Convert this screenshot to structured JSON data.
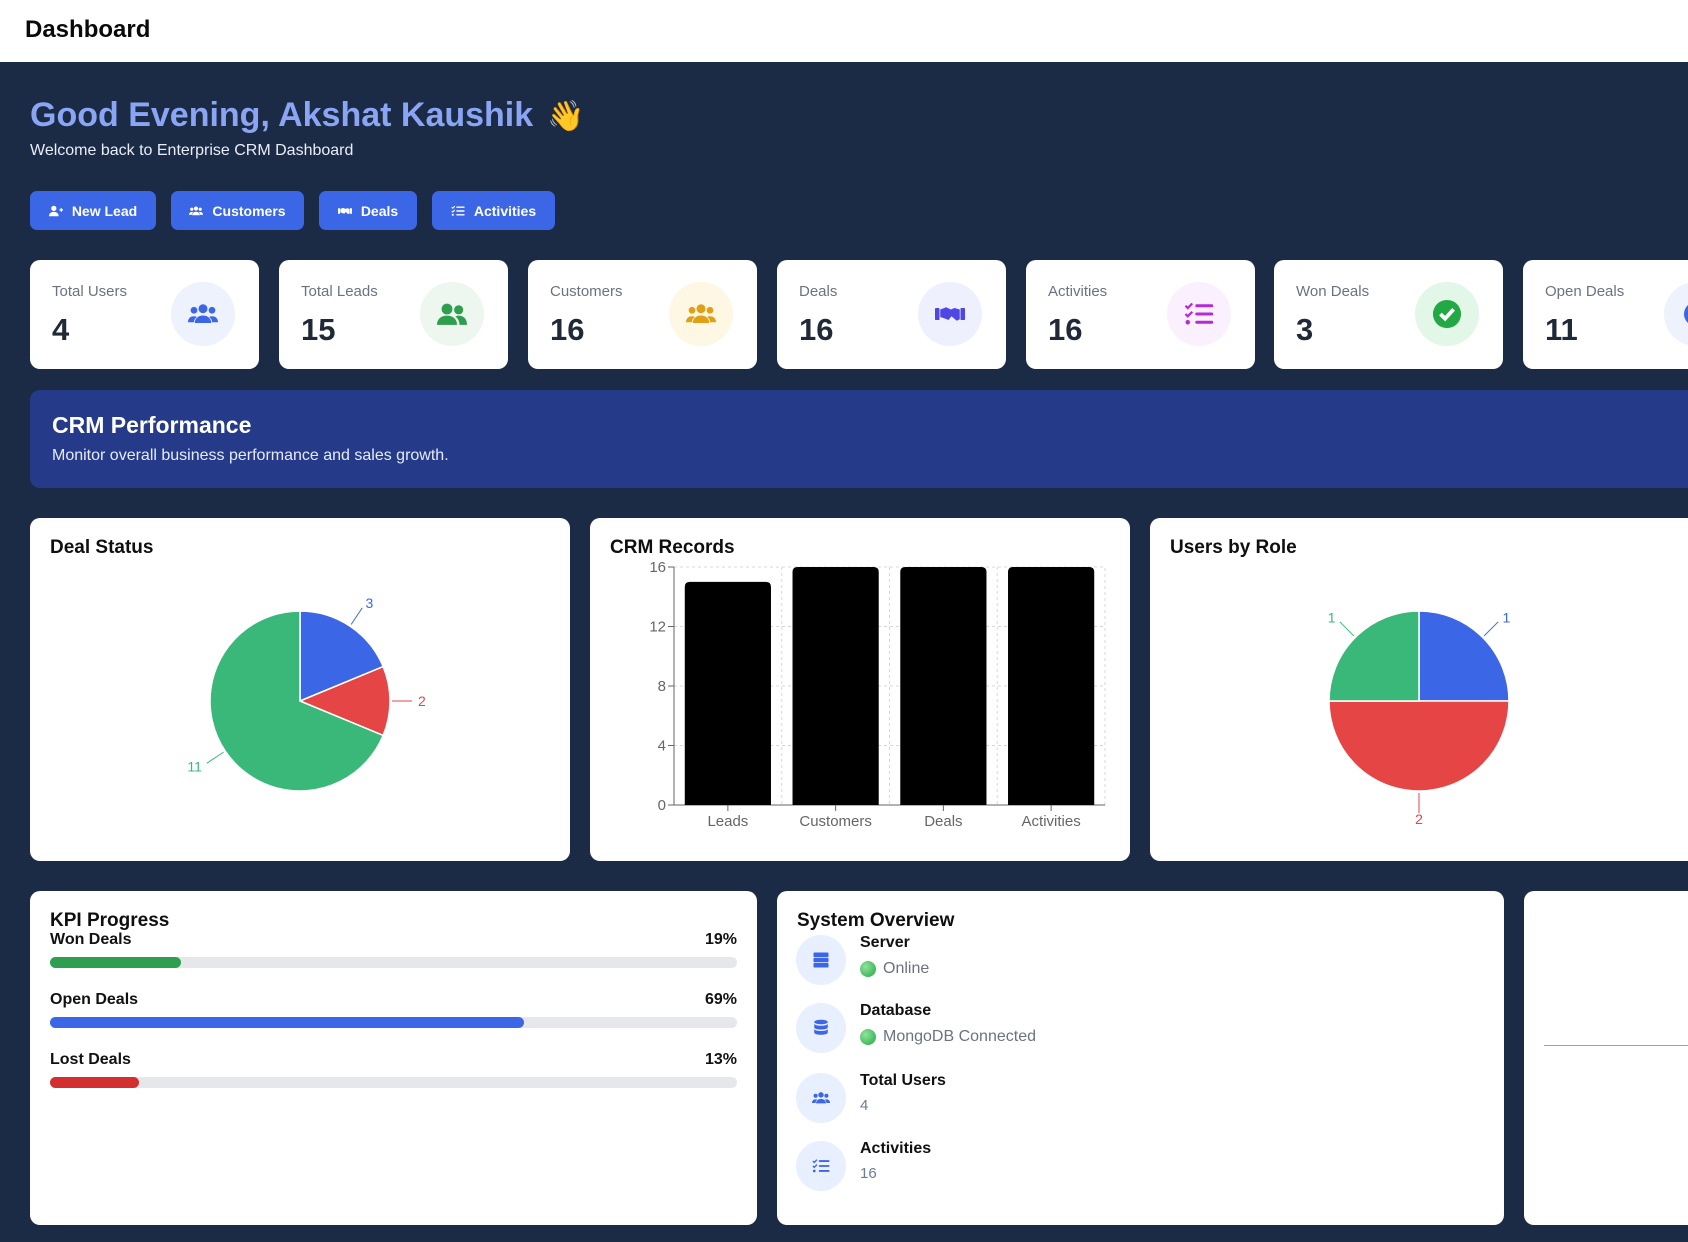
{
  "header": {
    "title": "Dashboard"
  },
  "welcome": {
    "greeting": "Good Evening, Akshat Kaushik",
    "emoji": "👋",
    "subtitle": "Welcome back to Enterprise CRM Dashboard"
  },
  "quick_actions": [
    {
      "label": "New Lead",
      "icon": "user-plus-icon"
    },
    {
      "label": "Customers",
      "icon": "users-icon"
    },
    {
      "label": "Deals",
      "icon": "handshake-icon"
    },
    {
      "label": "Activities",
      "icon": "list-check-icon"
    }
  ],
  "stats": [
    {
      "label": "Total Users",
      "value": "4",
      "icon": "users-icon",
      "color": "#3b66e6"
    },
    {
      "label": "Total Leads",
      "value": "15",
      "icon": "user-group-icon",
      "color": "#2e9e4f"
    },
    {
      "label": "Customers",
      "value": "16",
      "icon": "users-icon",
      "color": "#e0a016"
    },
    {
      "label": "Deals",
      "value": "16",
      "icon": "handshake-icon",
      "color": "#4f46e5"
    },
    {
      "label": "Activities",
      "value": "16",
      "icon": "list-check-icon",
      "color": "#b52bd0"
    },
    {
      "label": "Won Deals",
      "value": "3",
      "icon": "check-circle-icon",
      "color": "#22a844"
    },
    {
      "label": "Open Deals",
      "value": "11",
      "icon": "clock-icon",
      "color": "#3b66e6"
    }
  ],
  "banner": {
    "title": "CRM Performance",
    "subtitle": "Monitor overall business performance and sales growth."
  },
  "colors": {
    "blue": "#3b66e6",
    "green": "#3ab87a",
    "red": "#e54545"
  },
  "deal_status": {
    "title": "Deal Status"
  },
  "crm_records": {
    "title": "CRM Records"
  },
  "users_by_role": {
    "title": "Users by Role"
  },
  "chart_data": [
    {
      "type": "pie",
      "title": "Deal Status",
      "slices": [
        {
          "value": 3,
          "color": "#3b66e6"
        },
        {
          "value": 2,
          "color": "#e54545"
        },
        {
          "value": 11,
          "color": "#3ab87a"
        }
      ]
    },
    {
      "type": "bar",
      "title": "CRM Records",
      "categories": [
        "Leads",
        "Customers",
        "Deals",
        "Activities"
      ],
      "values": [
        15,
        16,
        16,
        16
      ],
      "ylim": [
        0,
        16
      ],
      "yticks": [
        0,
        4,
        8,
        12,
        16
      ],
      "grid": true,
      "bar_color": "#000000"
    },
    {
      "type": "pie",
      "title": "Users by Role",
      "slices": [
        {
          "value": 1,
          "color": "#3b66e6"
        },
        {
          "value": 2,
          "color": "#e54545"
        },
        {
          "value": 1,
          "color": "#3ab87a"
        }
      ]
    }
  ],
  "kpi": {
    "title": "KPI Progress",
    "items": [
      {
        "label": "Won Deals",
        "percent_text": "19%",
        "percent": 19,
        "color": "#2e9e4f"
      },
      {
        "label": "Open Deals",
        "percent_text": "69%",
        "percent": 69,
        "color": "#3b66e6"
      },
      {
        "label": "Lost Deals",
        "percent_text": "13%",
        "percent": 13,
        "color": "#d32f2f"
      }
    ]
  },
  "system": {
    "title": "System Overview",
    "items": [
      {
        "title": "Server",
        "status": "Online",
        "icon": "server-icon"
      },
      {
        "title": "Database",
        "status": "MongoDB Connected",
        "icon": "database-icon"
      },
      {
        "title": "Total Users",
        "value": "4",
        "icon": "users-icon"
      },
      {
        "title": "Activities",
        "value": "16",
        "icon": "list-check-icon"
      }
    ]
  }
}
